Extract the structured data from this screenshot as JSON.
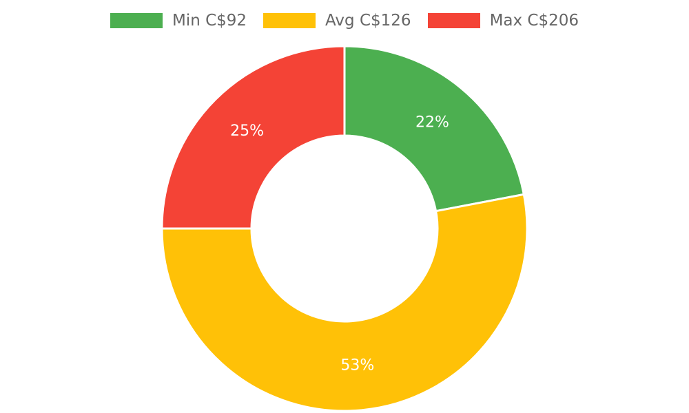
{
  "chart_data": {
    "type": "pie",
    "variant": "doughnut",
    "legend_position": "top",
    "series": [
      {
        "name": "Min C$92",
        "value": 22,
        "label": "22%",
        "color": "#4CAF50"
      },
      {
        "name": "Avg C$126",
        "value": 53,
        "label": "53%",
        "color": "#FFC107"
      },
      {
        "name": "Max C$206",
        "value": 25,
        "label": "25%",
        "color": "#F44336"
      }
    ]
  }
}
